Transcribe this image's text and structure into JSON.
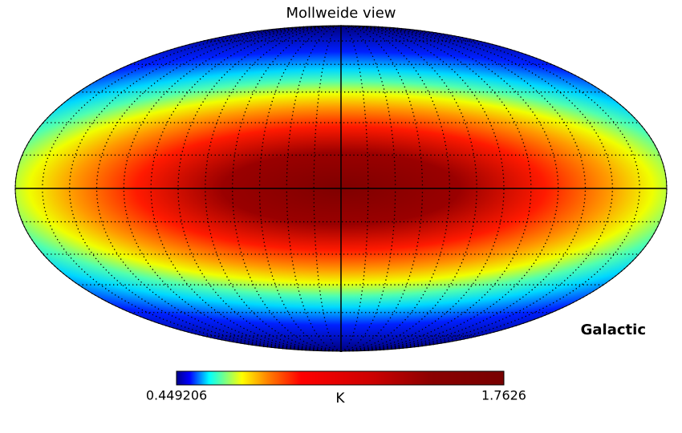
{
  "chart_data": {
    "type": "mollweide",
    "title": "Mollweide view",
    "coord": "Galactic",
    "unit": "K",
    "colormap": "jet",
    "clim": [
      0.449206,
      1.7626
    ],
    "cticks": [
      0.449206,
      1.7626
    ],
    "graticule": true
  }
}
